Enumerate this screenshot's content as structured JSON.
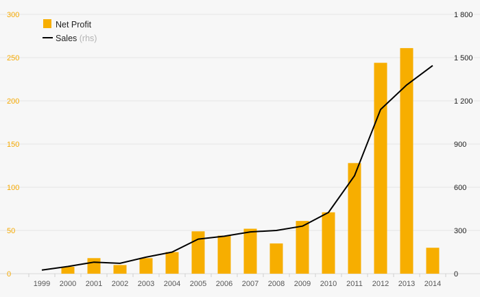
{
  "chart_data": {
    "type": "bar",
    "categories": [
      "1999",
      "2000",
      "2001",
      "2002",
      "2003",
      "2004",
      "2005",
      "2006",
      "2007",
      "2008",
      "2009",
      "2010",
      "2011",
      "2012",
      "2013",
      "2014"
    ],
    "series": [
      {
        "name": "Net Profit",
        "type": "bar",
        "axis": "left",
        "color": "#f7ae00",
        "values": [
          null,
          8,
          18,
          10,
          18,
          25,
          49,
          44,
          52,
          35,
          61,
          71,
          128,
          244,
          261,
          30
        ]
      },
      {
        "name": "Sales",
        "type": "line",
        "axis": "right",
        "color": "#000000",
        "values": [
          25,
          50,
          80,
          72,
          115,
          150,
          240,
          260,
          290,
          300,
          330,
          425,
          680,
          1140,
          1310,
          1445
        ]
      }
    ],
    "y_left": {
      "ylim": [
        0,
        300
      ],
      "ticks": [
        "0",
        "50",
        "100",
        "150",
        "200",
        "250",
        "300"
      ],
      "color": "#f5a900"
    },
    "y_right": {
      "ylim": [
        0,
        1800
      ],
      "ticks": [
        "0",
        "300",
        "600",
        "900",
        "1 200",
        "1 500",
        "1 800"
      ],
      "color": "#222222"
    },
    "legend": {
      "position": "top-left",
      "items": [
        {
          "label": "Net Profit",
          "sublabel": ""
        },
        {
          "label": "Sales",
          "sublabel": "(rhs)"
        }
      ]
    },
    "grid": true,
    "background": "#f7f7f7"
  }
}
